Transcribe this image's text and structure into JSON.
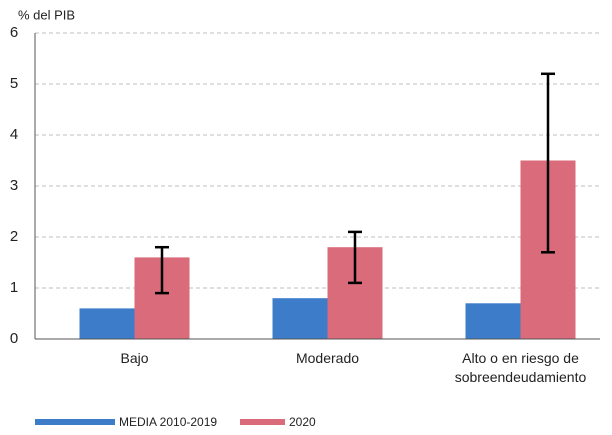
{
  "chart_data": {
    "type": "bar",
    "y_label": "% del PIB",
    "categories": [
      "Bajo",
      "Moderado",
      "Alto o en riesgo de sobreendeudamiento"
    ],
    "series": [
      {
        "name": "MEDIA 2010-2019",
        "color": "#3d7cc9",
        "values": [
          0.6,
          0.8,
          0.7
        ]
      },
      {
        "name": "2020",
        "color": "#d96b7a",
        "values": [
          1.6,
          1.8,
          3.5
        ],
        "lower": [
          0.9,
          1.1,
          1.7
        ],
        "upper": [
          1.8,
          2.1,
          5.2
        ]
      }
    ],
    "ylim": [
      0,
      6
    ],
    "yticks": [
      0,
      1,
      2,
      3,
      4,
      5,
      6
    ],
    "grid": true,
    "legend": "bottom"
  }
}
